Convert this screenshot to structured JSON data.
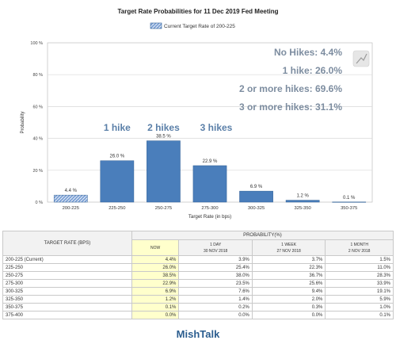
{
  "chart_data": {
    "type": "bar",
    "title": "Target Rate Probabilities for 11 Dec 2019 Fed Meeting",
    "legend": "Current Target Rate of 200-225",
    "legend_position": "top-center",
    "xlabel": "Target Rate (in bps)",
    "ylabel": "Probability",
    "ylim": [
      0,
      100
    ],
    "yticks": [
      "0 %",
      "20 %",
      "40 %",
      "60 %",
      "80 %",
      "100 %"
    ],
    "grid": true,
    "categories": [
      "200-225",
      "225-250",
      "250-275",
      "275-300",
      "300-325",
      "325-350",
      "350-375"
    ],
    "values": [
      4.4,
      26.0,
      38.5,
      22.9,
      6.9,
      1.2,
      0.1
    ],
    "data_labels": [
      "4.4 %",
      "26.0 %",
      "38.5 %",
      "22.9 %",
      "6.9 %",
      "1.2 %",
      "0.1 %"
    ],
    "current_index": 0,
    "colors": {
      "bar": "#4a7ebb",
      "bar_edge": "#2f5f95",
      "current_bar": "#7fa3d6",
      "grid": "#d9d9d9",
      "annotation": "#5a7fa8",
      "callout": "#7d8da0"
    },
    "annotations": [
      {
        "text": "No Hikes:   4.4%",
        "kind": "callout"
      },
      {
        "text": "1 hike: 26.0%",
        "kind": "callout"
      },
      {
        "text": "2 or more hikes: 69.6%",
        "kind": "callout"
      },
      {
        "text": "3 or more hikes: 31.1%",
        "kind": "callout"
      },
      {
        "text": "1 hike",
        "kind": "bar",
        "category": "225-250"
      },
      {
        "text": "2 hikes",
        "kind": "bar",
        "category": "250-275"
      },
      {
        "text": "3 hikes",
        "kind": "bar",
        "category": "275-300"
      }
    ]
  },
  "table": {
    "col_rate": "TARGET RATE (BPS)",
    "col_prob": "PROBABILITY(%)",
    "sub_headers": [
      {
        "title": "NOW",
        "date": ""
      },
      {
        "title": "1 DAY",
        "date": "30 NOV 2018"
      },
      {
        "title": "1 WEEK",
        "date": "27 NOV 2018"
      },
      {
        "title": "1 MONTH",
        "date": "2 NOV 2018"
      }
    ],
    "rows": [
      {
        "rate": "200-225 (Current)",
        "now": "4.4%",
        "day": "3.9%",
        "week": "3.7%",
        "month": "1.5%"
      },
      {
        "rate": "225-250",
        "now": "26.0%",
        "day": "25.4%",
        "week": "22.3%",
        "month": "11.0%"
      },
      {
        "rate": "250-275",
        "now": "38.5%",
        "day": "38.0%",
        "week": "36.7%",
        "month": "28.3%"
      },
      {
        "rate": "275-300",
        "now": "22.9%",
        "day": "23.5%",
        "week": "25.6%",
        "month": "33.9%"
      },
      {
        "rate": "300-325",
        "now": "6.9%",
        "day": "7.6%",
        "week": "9.4%",
        "month": "19.1%"
      },
      {
        "rate": "325-350",
        "now": "1.2%",
        "day": "1.4%",
        "week": "2.0%",
        "month": "5.9%"
      },
      {
        "rate": "350-375",
        "now": "0.1%",
        "day": "0.2%",
        "week": "0.3%",
        "month": "1.0%"
      },
      {
        "rate": "375-400",
        "now": "0.0%",
        "day": "0.0%",
        "week": "0.0%",
        "month": "0.1%"
      }
    ]
  },
  "footer": "MishTalk"
}
